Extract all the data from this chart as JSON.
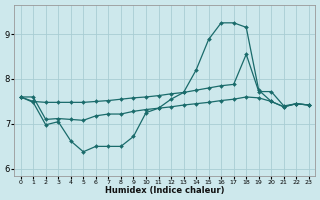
{
  "bg_color": "#cde8ec",
  "grid_color": "#a8cdd4",
  "line_color": "#1a6b6b",
  "xlabel": "Humidex (Indice chaleur)",
  "xlim": [
    -0.5,
    23.5
  ],
  "ylim": [
    5.85,
    9.65
  ],
  "xticks": [
    0,
    1,
    2,
    3,
    4,
    5,
    6,
    7,
    8,
    9,
    10,
    11,
    12,
    13,
    14,
    15,
    16,
    17,
    18,
    19,
    20,
    21,
    22,
    23
  ],
  "yticks": [
    6,
    7,
    8,
    9
  ],
  "line1_x": [
    0,
    1,
    2,
    3,
    4,
    5,
    6,
    7,
    8,
    9,
    10,
    11,
    12,
    13,
    14,
    15,
    16,
    17,
    18,
    19,
    20,
    21,
    22,
    23
  ],
  "line1_y": [
    7.6,
    7.48,
    6.98,
    7.05,
    6.62,
    6.38,
    6.5,
    6.5,
    6.5,
    6.72,
    7.25,
    7.35,
    7.55,
    7.7,
    8.2,
    8.88,
    9.25,
    9.25,
    9.15,
    7.75,
    7.5,
    7.38,
    7.45,
    7.42
  ],
  "line2_x": [
    0,
    1,
    2,
    3,
    4,
    5,
    6,
    7,
    8,
    9,
    10,
    11,
    12,
    13,
    14,
    15,
    16,
    17,
    18,
    19,
    20,
    21,
    22,
    23
  ],
  "line2_y": [
    7.6,
    7.5,
    7.48,
    7.48,
    7.48,
    7.48,
    7.5,
    7.52,
    7.55,
    7.58,
    7.6,
    7.63,
    7.67,
    7.7,
    7.75,
    7.8,
    7.85,
    7.88,
    8.55,
    7.72,
    7.72,
    7.4,
    7.45,
    7.42
  ],
  "line3_x": [
    0,
    1,
    2,
    3,
    4,
    5,
    6,
    7,
    8,
    9,
    10,
    11,
    12,
    13,
    14,
    15,
    16,
    17,
    18,
    19,
    20,
    21,
    22,
    23
  ],
  "line3_y": [
    7.6,
    7.6,
    7.1,
    7.12,
    7.1,
    7.08,
    7.18,
    7.22,
    7.22,
    7.28,
    7.32,
    7.35,
    7.38,
    7.42,
    7.45,
    7.48,
    7.52,
    7.55,
    7.6,
    7.58,
    7.5,
    7.38,
    7.45,
    7.42
  ]
}
